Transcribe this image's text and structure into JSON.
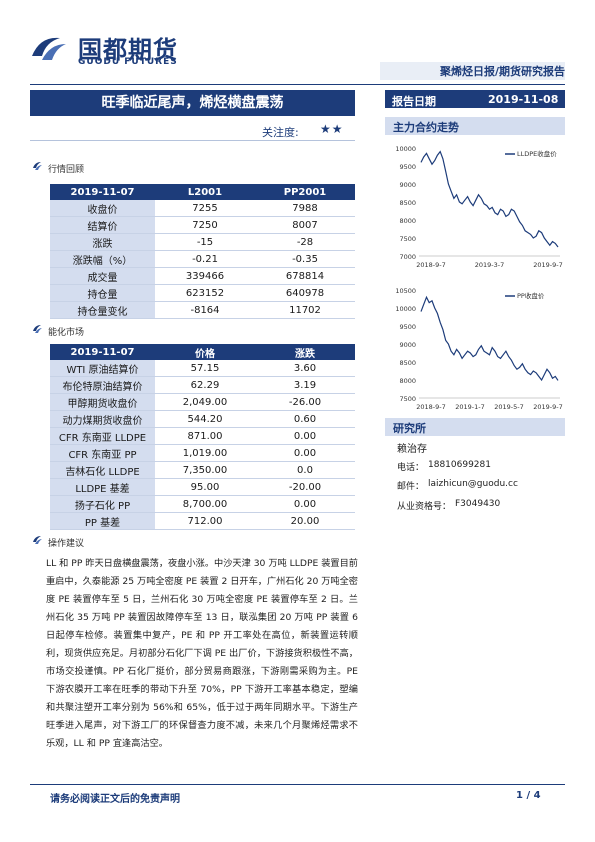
{
  "header": {
    "logo_cn": "国都期货",
    "logo_en": "GUODU FUTURES",
    "report_type": "聚烯烃日报/期货研究报告"
  },
  "title": "旺季临近尾声，烯烃横盘震荡",
  "report_date_label": "报告日期",
  "report_date": "2019-11-08",
  "attention_label": "关注度:",
  "attention_stars": "★★",
  "market_review": {
    "heading": "行情回顾",
    "columns": [
      "2019-11-07",
      "L2001",
      "PP2001"
    ],
    "rows": [
      {
        "label": "收盘价",
        "l": "7255",
        "pp": "7988"
      },
      {
        "label": "结算价",
        "l": "7250",
        "pp": "8007"
      },
      {
        "label": "涨跌",
        "l": "-15",
        "pp": "-28"
      },
      {
        "label": "涨跌幅（%）",
        "l": "-0.21",
        "pp": "-0.35"
      },
      {
        "label": "成交量",
        "l": "339466",
        "pp": "678814"
      },
      {
        "label": "持仓量",
        "l": "623152",
        "pp": "640978"
      },
      {
        "label": "持仓量变化",
        "l": "-8164",
        "pp": "11702"
      }
    ]
  },
  "energy_market": {
    "heading": "能化市场",
    "columns": [
      "2019-11-07",
      "价格",
      "涨跌"
    ],
    "rows": [
      {
        "label": "WTI 原油结算价",
        "price": "57.15",
        "chg": "3.60"
      },
      {
        "label": "布伦特原油结算价",
        "price": "62.29",
        "chg": "3.19"
      },
      {
        "label": "甲醇期货收盘价",
        "price": "2,049.00",
        "chg": "-26.00"
      },
      {
        "label": "动力煤期货收盘价",
        "price": "544.20",
        "chg": "0.60"
      },
      {
        "label": "CFR 东南亚 LLDPE",
        "price": "871.00",
        "chg": "0.00"
      },
      {
        "label": "CFR 东南亚 PP",
        "price": "1,019.00",
        "chg": "0.00"
      },
      {
        "label": "吉林石化 LLDPE",
        "price": "7,350.00",
        "chg": "0.0"
      },
      {
        "label": "LLDPE 基差",
        "price": "95.00",
        "chg": "-20.00"
      },
      {
        "label": "扬子石化 PP",
        "price": "8,700.00",
        "chg": "0.00"
      },
      {
        "label": "PP 基差",
        "price": "712.00",
        "chg": "20.00"
      }
    ]
  },
  "advice": {
    "heading": "操作建议",
    "text": "LL 和 PP 昨天日盘横盘震荡，夜盘小涨。中沙天津 30 万吨 LLDPE 装置目前重启中，久泰能源 25 万吨全密度 PE 装置 2 日开车，广州石化 20 万吨全密度 PE 装置停车至 5 日，兰州石化 30 万吨全密度 PE 装置停车至 2 日。兰州石化 35 万吨 PP 装置因故障停车至 13 日，联泓集团 20 万吨 PP 装置 6 日起停车检修。装置集中复产，PE 和 PP 开工率处在高位，新装置运转顺利，现货供应充足。月初部分石化厂下调 PE 出厂价，下游接货积极性不高，市场交投谨慎。PP 石化厂挺价，部分贸易商跟涨，下游刚需采购为主。PE 下游农膜开工率在旺季的带动下升至 70%，PP 下游开工率基本稳定，塑编和共聚注塑开工率分别为 56%和 65%，低于过于两年同期水平。下游生产旺季进入尾声，对下游工厂的环保督查力度不减，未来几个月聚烯烃需求不乐观，LL 和 PP 宜逢高沽空。"
  },
  "main_contract": {
    "heading": "主力合约走势",
    "charts": [
      {
        "legend": "LLDPE收盘价",
        "x_ticks": [
          "2018-9-7",
          "2019-3-7",
          "2019-9-7"
        ],
        "y_ticks": [
          "10000",
          "9500",
          "9000",
          "8500",
          "8000",
          "7500",
          "7000"
        ],
        "ylim": [
          7000,
          10000
        ],
        "series": [
          9600,
          9750,
          9850,
          9700,
          9550,
          9650,
          9800,
          9900,
          9700,
          9350,
          9000,
          8800,
          8600,
          8700,
          8500,
          8450,
          8550,
          8650,
          8500,
          8400,
          8550,
          8700,
          8600,
          8450,
          8400,
          8300,
          8350,
          8200,
          8150,
          8300,
          8250,
          8100,
          8150,
          8300,
          8250,
          8100,
          7950,
          7850,
          7700,
          7650,
          7600,
          7500,
          7550,
          7700,
          7650,
          7500,
          7400,
          7300,
          7400,
          7350,
          7250
        ]
      },
      {
        "legend": "PP收盘价",
        "x_ticks": [
          "2018-9-7",
          "2019-1-7",
          "2019-5-7",
          "2019-9-7"
        ],
        "y_ticks": [
          "10500",
          "10000",
          "9500",
          "9000",
          "8500",
          "8000",
          "7500"
        ],
        "ylim": [
          7500,
          10500
        ],
        "series": [
          9900,
          10100,
          10300,
          10150,
          10200,
          10000,
          9850,
          9600,
          9400,
          9100,
          9000,
          8800,
          8700,
          8850,
          8750,
          8600,
          8700,
          8800,
          8750,
          8650,
          8700,
          8850,
          8950,
          8800,
          8750,
          8700,
          8900,
          8800,
          8650,
          8600,
          8700,
          8800,
          8650,
          8550,
          8400,
          8300,
          8350,
          8450,
          8300,
          8200,
          8150,
          8250,
          8200,
          8100,
          8000,
          8150,
          8300,
          8200,
          8050,
          8100,
          7990
        ]
      }
    ]
  },
  "research": {
    "heading": "研究所",
    "name": "赖治存",
    "phone_label": "电话：",
    "phone": "18810699281",
    "email_label": "邮件：",
    "email": "laizhicun@guodu.cc",
    "cert_label": "从业资格号：",
    "cert": "F3049430"
  },
  "footer": {
    "disclaimer": "请务必阅读正文后的免责声明",
    "page": "1 / 4"
  },
  "colors": {
    "brand": "#1d3c7a",
    "row_fill": "#d4ddef",
    "line": "#1d3c7a"
  }
}
